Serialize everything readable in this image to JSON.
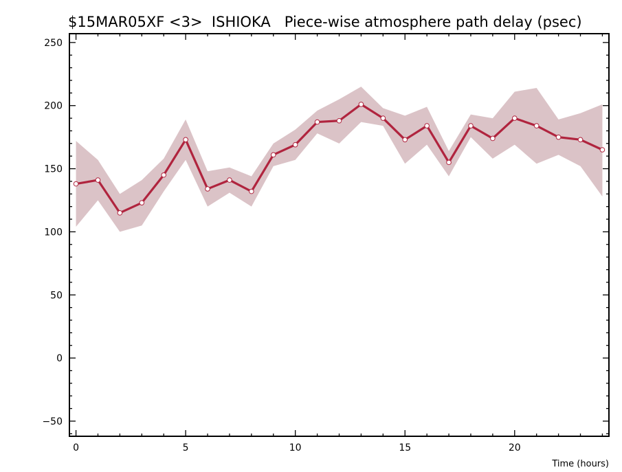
{
  "chart_data": {
    "type": "line",
    "title": "$15MAR05XF <3>  ISHIOKA   Piece-wise atmosphere path delay (psec)",
    "xlabel": "Time (hours)",
    "ylabel": "",
    "xlim": [
      -0.3,
      24.3
    ],
    "ylim": [
      -62,
      257
    ],
    "xticks": [
      0,
      5,
      10,
      15,
      20
    ],
    "yticks": [
      -50,
      0,
      50,
      100,
      150,
      200,
      250
    ],
    "grid": false,
    "colors": {
      "line": "#b0243e",
      "band": "#dbc3c7",
      "axis": "#000000"
    },
    "series": [
      {
        "x": [
          0,
          1,
          2,
          3,
          4,
          5,
          6,
          7,
          8,
          9,
          10,
          11,
          12,
          13,
          14,
          15,
          16,
          17,
          18,
          19,
          20,
          21,
          22,
          23,
          24
        ],
        "values": [
          138,
          141,
          115,
          123,
          145,
          173,
          134,
          141,
          132,
          161,
          169,
          187,
          188,
          201,
          190,
          173,
          184,
          155,
          184,
          174,
          190,
          184,
          175,
          173,
          165
        ],
        "upper": [
          172,
          157,
          130,
          141,
          158,
          189,
          148,
          151,
          144,
          170,
          181,
          196,
          205,
          215,
          198,
          192,
          199,
          164,
          193,
          190,
          211,
          214,
          189,
          194,
          201
        ],
        "lower": [
          104,
          125,
          100,
          105,
          132,
          157,
          120,
          131,
          120,
          152,
          157,
          178,
          170,
          187,
          184,
          154,
          169,
          144,
          175,
          158,
          169,
          154,
          161,
          152,
          128
        ]
      }
    ]
  }
}
